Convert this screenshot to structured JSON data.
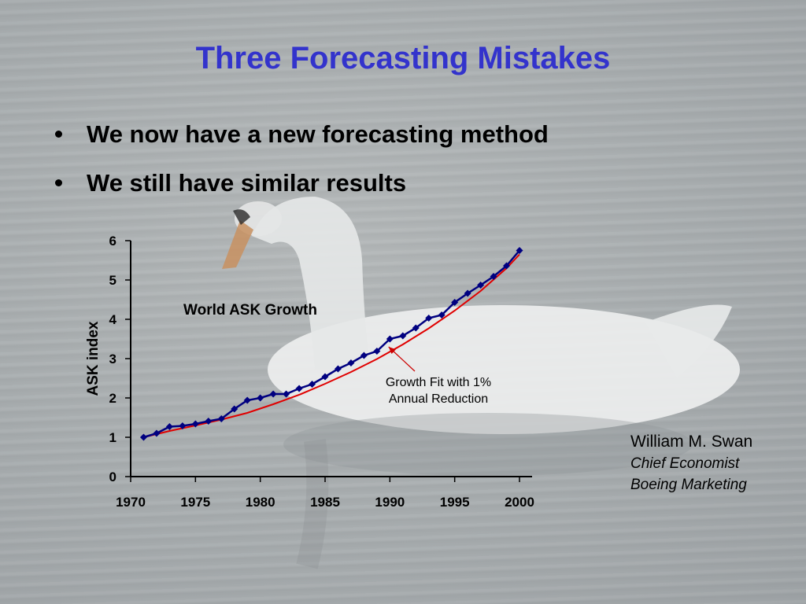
{
  "slide": {
    "title": "Three Forecasting Mistakes",
    "bullets": [
      "We now have a new forecasting method",
      "We still have similar results"
    ],
    "attribution": {
      "name": "William M. Swan",
      "role": "Chief Economist",
      "org": "Boeing Marketing"
    }
  },
  "colors": {
    "title": "#3333cc",
    "series_actual": "#000080",
    "series_fit": "#e00000",
    "arrow": "#cc0000"
  },
  "chart_data": {
    "type": "line",
    "title": "World ASK Growth",
    "xlabel": "",
    "ylabel": "ASK index",
    "xlim": [
      1970,
      2000
    ],
    "ylim": [
      0,
      6
    ],
    "x_ticks": [
      1970,
      1975,
      1980,
      1985,
      1990,
      1995,
      2000
    ],
    "y_ticks": [
      0,
      1,
      2,
      3,
      4,
      5,
      6
    ],
    "grid": false,
    "annotation": {
      "text_lines": [
        "Growth Fit with 1%",
        "Annual Reduction"
      ],
      "points_to": {
        "x": 1989.9,
        "y": 3.3
      }
    },
    "series": [
      {
        "style": "line-with-diamond-markers",
        "x": [
          1971,
          1972,
          1973,
          1974,
          1975,
          1976,
          1977,
          1978,
          1979,
          1980,
          1981,
          1982,
          1983,
          1984,
          1985,
          1986,
          1987,
          1988,
          1989,
          1990,
          1991,
          1992,
          1993,
          1994,
          1995,
          1996,
          1997,
          1998,
          1999,
          2000
        ],
        "values": [
          1.0,
          1.1,
          1.27,
          1.29,
          1.34,
          1.41,
          1.47,
          1.72,
          1.94,
          2.0,
          2.1,
          2.1,
          2.24,
          2.35,
          2.54,
          2.74,
          2.89,
          3.08,
          3.19,
          3.5,
          3.58,
          3.78,
          4.03,
          4.11,
          4.43,
          4.66,
          4.87,
          5.09,
          5.36,
          5.75
        ]
      },
      {
        "style": "smooth-line",
        "x": [
          1971,
          1973,
          1975,
          1977,
          1979,
          1981,
          1983,
          1985,
          1987,
          1989,
          1991,
          1993,
          1995,
          1997,
          1999,
          2000
        ],
        "values": [
          1.0,
          1.16,
          1.3,
          1.45,
          1.62,
          1.84,
          2.08,
          2.36,
          2.66,
          2.99,
          3.36,
          3.77,
          4.22,
          4.72,
          5.3,
          5.65
        ]
      }
    ]
  }
}
